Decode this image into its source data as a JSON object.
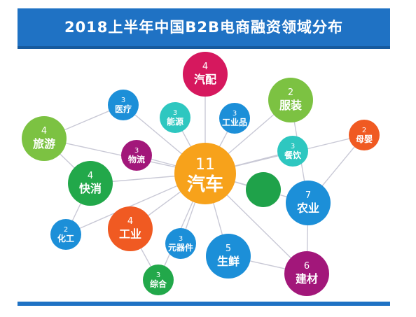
{
  "title": "2018上半年中国B2B电商融资领域分布",
  "colors": {
    "banner": "#1f72c4",
    "line": "#c9c9d6"
  },
  "hub": {
    "count": "11",
    "label": "汽车",
    "color": "#f7a21b"
  },
  "nodes": [
    {
      "id": "qipei",
      "count": "4",
      "label": "汽配",
      "color": "#d6185e",
      "size": "large"
    },
    {
      "id": "fuzhuang",
      "count": "2",
      "label": "服装",
      "color": "#7cc242",
      "size": "large"
    },
    {
      "id": "yiliao",
      "count": "3",
      "label": "医疗",
      "color": "#1c8fd8",
      "size": "small"
    },
    {
      "id": "nengyuan",
      "count": "3",
      "label": "能源",
      "color": "#2ec7c0",
      "size": "small"
    },
    {
      "id": "gongyepin",
      "count": "3",
      "label": "工业品",
      "color": "#1c8fd8",
      "size": "small"
    },
    {
      "id": "muying",
      "count": "2",
      "label": "母婴",
      "color": "#f05a22",
      "size": "small"
    },
    {
      "id": "lvyou",
      "count": "4",
      "label": "旅游",
      "color": "#7cc242",
      "size": "large"
    },
    {
      "id": "wuliu",
      "count": "3",
      "label": "物流",
      "color": "#a2177a",
      "size": "small"
    },
    {
      "id": "canyin",
      "count": "3",
      "label": "餐饮",
      "color": "#2ec7c0",
      "size": "small"
    },
    {
      "id": "kuaixiao",
      "count": "4",
      "label": "快消",
      "color": "#22a84a",
      "size": "large"
    },
    {
      "id": "blank",
      "count": "",
      "label": "",
      "color": "#1fa24a",
      "size": "medium"
    },
    {
      "id": "nongye",
      "count": "7",
      "label": "农业",
      "color": "#1c8fd8",
      "size": "large"
    },
    {
      "id": "huagong",
      "count": "2",
      "label": "化工",
      "color": "#1c8fd8",
      "size": "small"
    },
    {
      "id": "gongye",
      "count": "4",
      "label": "工业",
      "color": "#f05a22",
      "size": "large"
    },
    {
      "id": "yuanqijian",
      "count": "3",
      "label": "元器件",
      "color": "#1c8fd8",
      "size": "small"
    },
    {
      "id": "shengxian",
      "count": "5",
      "label": "生鲜",
      "color": "#1c8fd8",
      "size": "large"
    },
    {
      "id": "zonghe",
      "count": "3",
      "label": "综合",
      "color": "#22a84a",
      "size": "small"
    },
    {
      "id": "jiancai",
      "count": "6",
      "label": "建材",
      "color": "#a2177a",
      "size": "large"
    }
  ]
}
